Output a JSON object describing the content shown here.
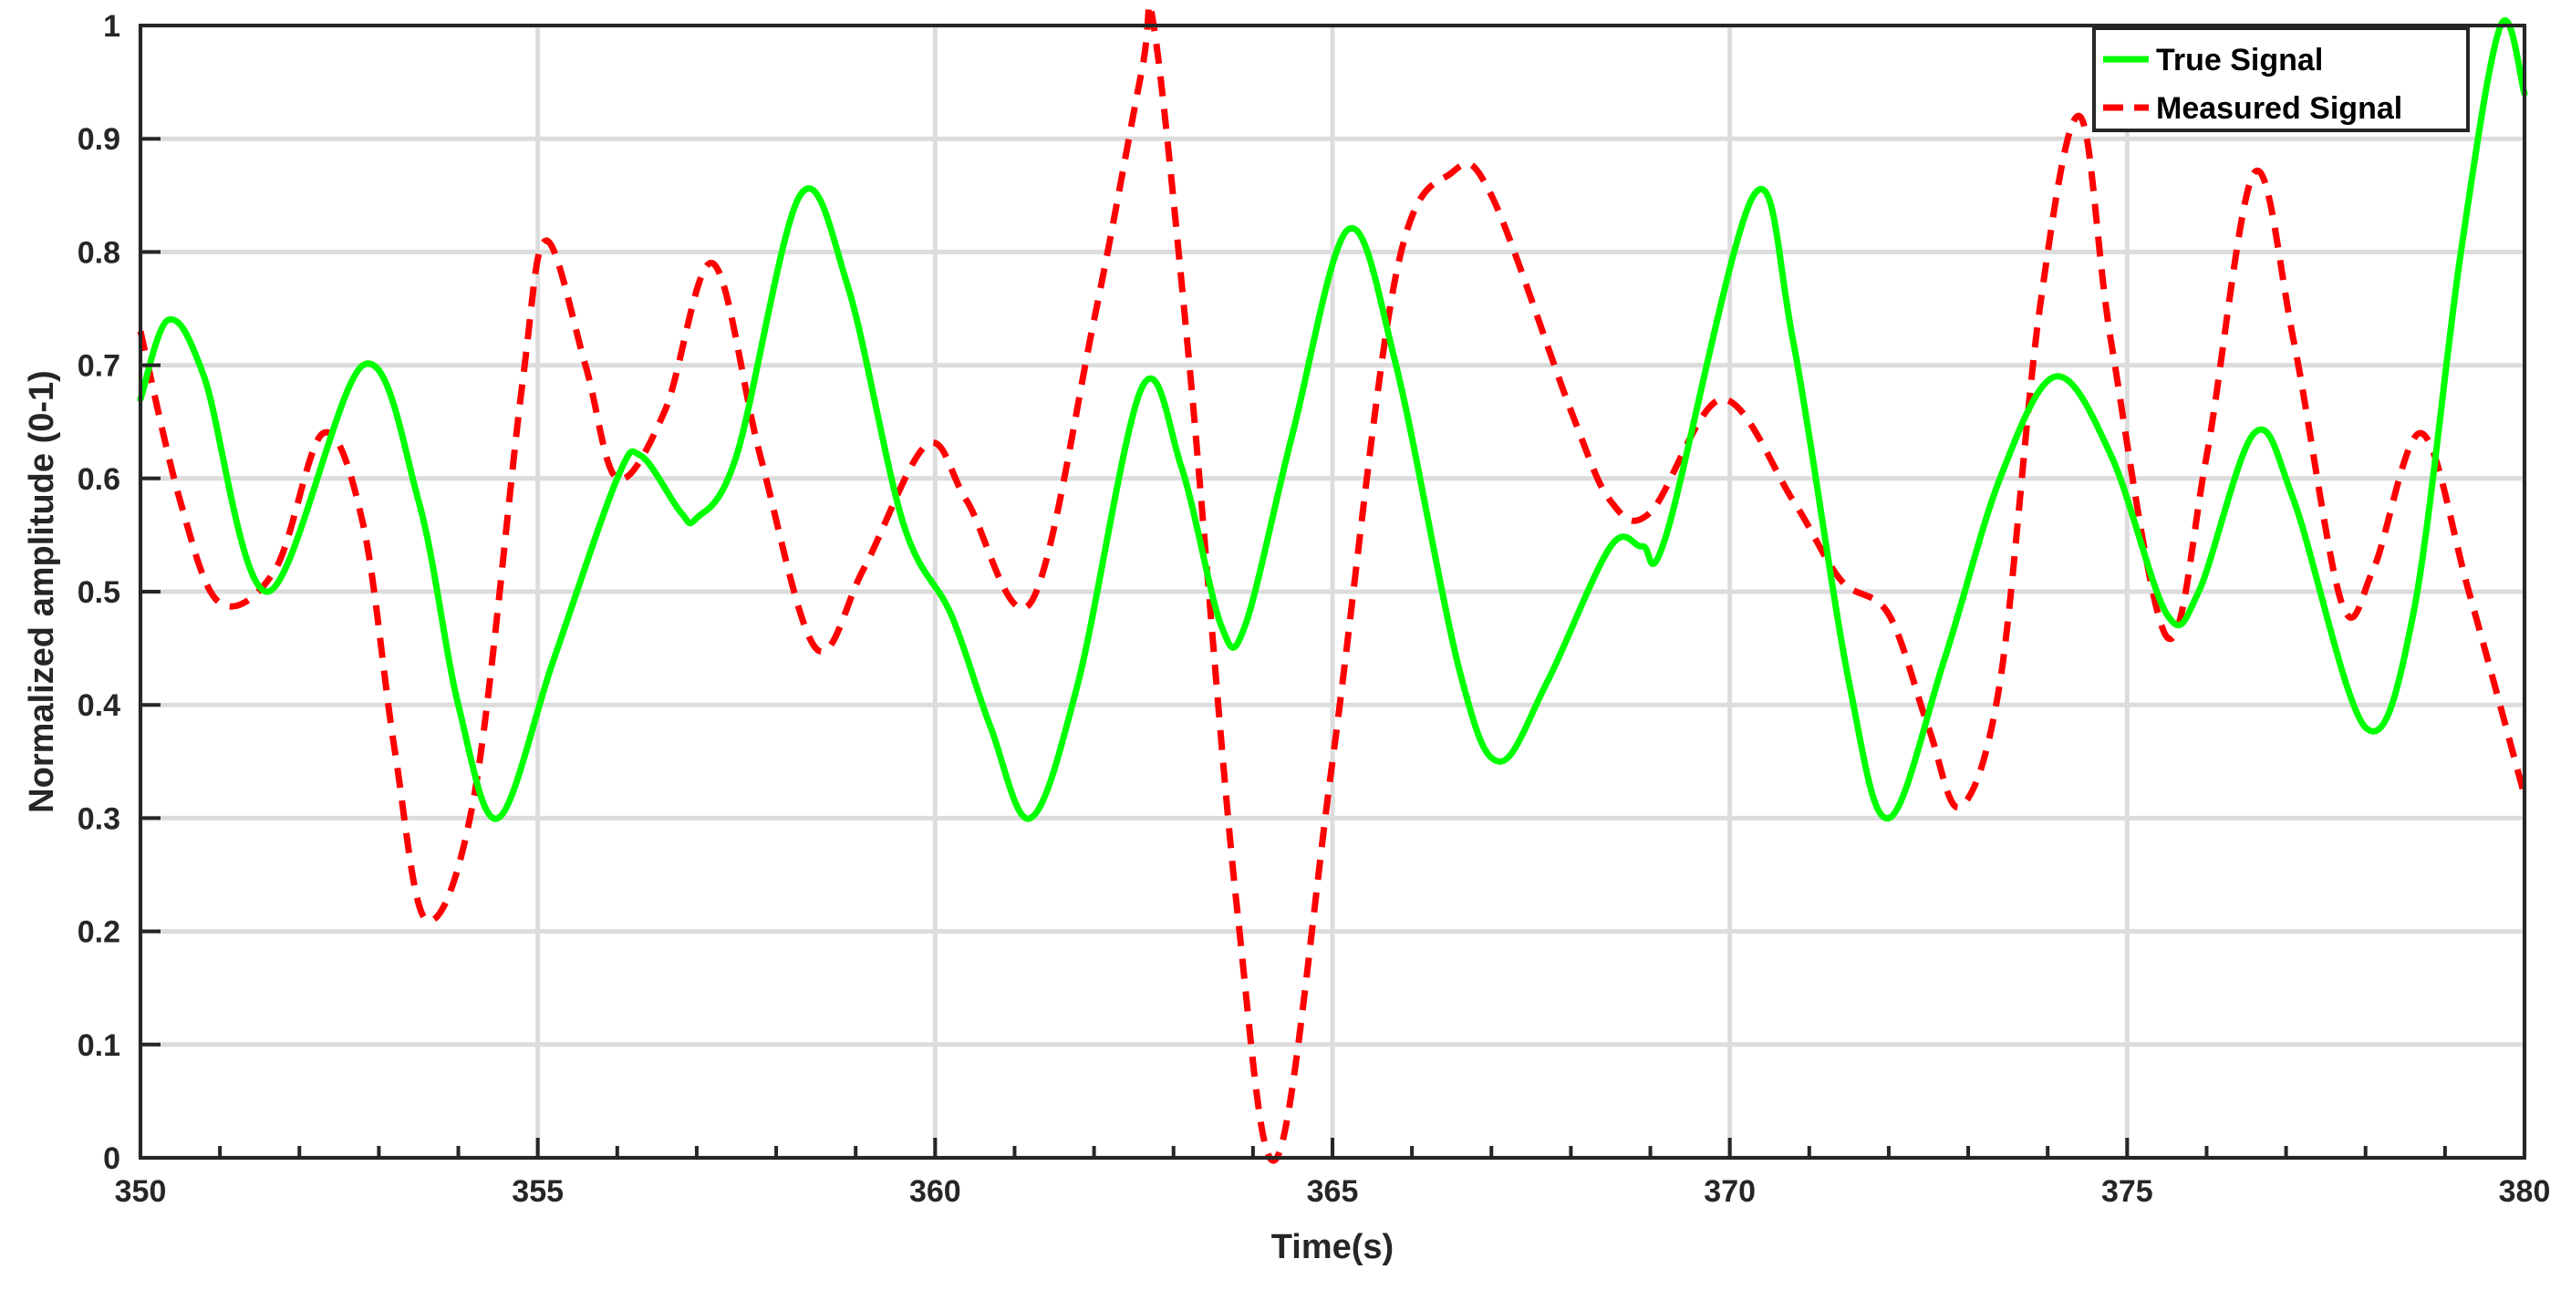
{
  "chart_data": {
    "type": "line",
    "xlabel": "Time(s)",
    "ylabel": "Normalized amplitude (0-1)",
    "xlim": [
      350,
      380
    ],
    "ylim": [
      0,
      1
    ],
    "x_ticks": [
      "350",
      "355",
      "360",
      "365",
      "370",
      "375",
      "380"
    ],
    "y_ticks": [
      "0",
      "0.1",
      "0.2",
      "0.3",
      "0.4",
      "0.5",
      "0.6",
      "0.7",
      "0.8",
      "0.9",
      "1"
    ],
    "grid": true,
    "legend_position": "top-right",
    "series": [
      {
        "name": "True Signal",
        "color": "#00ff00",
        "style": "solid",
        "points": [
          [
            350,
            0.67
          ],
          [
            350.35,
            0.74
          ],
          [
            350.8,
            0.69
          ],
          [
            351.6,
            0.5
          ],
          [
            352.8,
            0.7
          ],
          [
            353.5,
            0.58
          ],
          [
            354.0,
            0.4
          ],
          [
            354.5,
            0.3
          ],
          [
            355.2,
            0.44
          ],
          [
            356.0,
            0.6
          ],
          [
            356.3,
            0.62
          ],
          [
            356.8,
            0.57
          ],
          [
            357.0,
            0.565
          ],
          [
            357.5,
            0.62
          ],
          [
            358.3,
            0.85
          ],
          [
            358.9,
            0.77
          ],
          [
            359.6,
            0.56
          ],
          [
            360.2,
            0.48
          ],
          [
            360.7,
            0.38
          ],
          [
            361.2,
            0.3
          ],
          [
            361.8,
            0.42
          ],
          [
            362.6,
            0.68
          ],
          [
            363.1,
            0.61
          ],
          [
            363.6,
            0.47
          ],
          [
            363.9,
            0.47
          ],
          [
            364.5,
            0.64
          ],
          [
            365.2,
            0.82
          ],
          [
            365.8,
            0.7
          ],
          [
            366.6,
            0.43
          ],
          [
            367.1,
            0.35
          ],
          [
            367.7,
            0.42
          ],
          [
            368.5,
            0.54
          ],
          [
            368.9,
            0.54
          ],
          [
            369.2,
            0.55
          ],
          [
            370.3,
            0.85
          ],
          [
            370.8,
            0.72
          ],
          [
            371.5,
            0.42
          ],
          [
            372.0,
            0.3
          ],
          [
            372.7,
            0.44
          ],
          [
            373.4,
            0.6
          ],
          [
            374.1,
            0.69
          ],
          [
            374.8,
            0.62
          ],
          [
            375.5,
            0.48
          ],
          [
            375.9,
            0.5
          ],
          [
            376.6,
            0.64
          ],
          [
            377.1,
            0.58
          ],
          [
            378.0,
            0.38
          ],
          [
            378.6,
            0.48
          ],
          [
            379.2,
            0.8
          ],
          [
            379.7,
            1.0
          ],
          [
            380,
            0.94
          ]
        ]
      },
      {
        "name": "Measured Signal",
        "color": "#ff0000",
        "style": "dashed",
        "points": [
          [
            350,
            0.73
          ],
          [
            350.5,
            0.58
          ],
          [
            351.0,
            0.49
          ],
          [
            351.7,
            0.52
          ],
          [
            352.3,
            0.64
          ],
          [
            352.8,
            0.56
          ],
          [
            353.2,
            0.36
          ],
          [
            353.6,
            0.21
          ],
          [
            354.2,
            0.32
          ],
          [
            354.8,
            0.68
          ],
          [
            355.1,
            0.81
          ],
          [
            355.6,
            0.7
          ],
          [
            356.0,
            0.6
          ],
          [
            356.6,
            0.66
          ],
          [
            357.2,
            0.79
          ],
          [
            357.8,
            0.62
          ],
          [
            358.5,
            0.45
          ],
          [
            359.1,
            0.52
          ],
          [
            359.9,
            0.63
          ],
          [
            360.4,
            0.58
          ],
          [
            361.2,
            0.49
          ],
          [
            362.0,
            0.74
          ],
          [
            362.6,
            0.96
          ],
          [
            362.75,
            1.0
          ],
          [
            363.2,
            0.7
          ],
          [
            363.8,
            0.22
          ],
          [
            364.3,
            0.0
          ],
          [
            365.0,
            0.35
          ],
          [
            365.8,
            0.78
          ],
          [
            366.5,
            0.87
          ],
          [
            367.0,
            0.85
          ],
          [
            368.0,
            0.66
          ],
          [
            368.5,
            0.58
          ],
          [
            369.0,
            0.57
          ],
          [
            369.9,
            0.67
          ],
          [
            370.8,
            0.58
          ],
          [
            371.4,
            0.51
          ],
          [
            372.0,
            0.48
          ],
          [
            372.5,
            0.38
          ],
          [
            372.9,
            0.31
          ],
          [
            373.4,
            0.42
          ],
          [
            373.9,
            0.75
          ],
          [
            374.4,
            0.92
          ],
          [
            374.8,
            0.72
          ],
          [
            375.5,
            0.46
          ],
          [
            376.0,
            0.62
          ],
          [
            376.6,
            0.87
          ],
          [
            377.1,
            0.72
          ],
          [
            377.7,
            0.49
          ],
          [
            378.1,
            0.52
          ],
          [
            378.7,
            0.64
          ],
          [
            379.3,
            0.5
          ],
          [
            380,
            0.32
          ]
        ]
      }
    ]
  }
}
